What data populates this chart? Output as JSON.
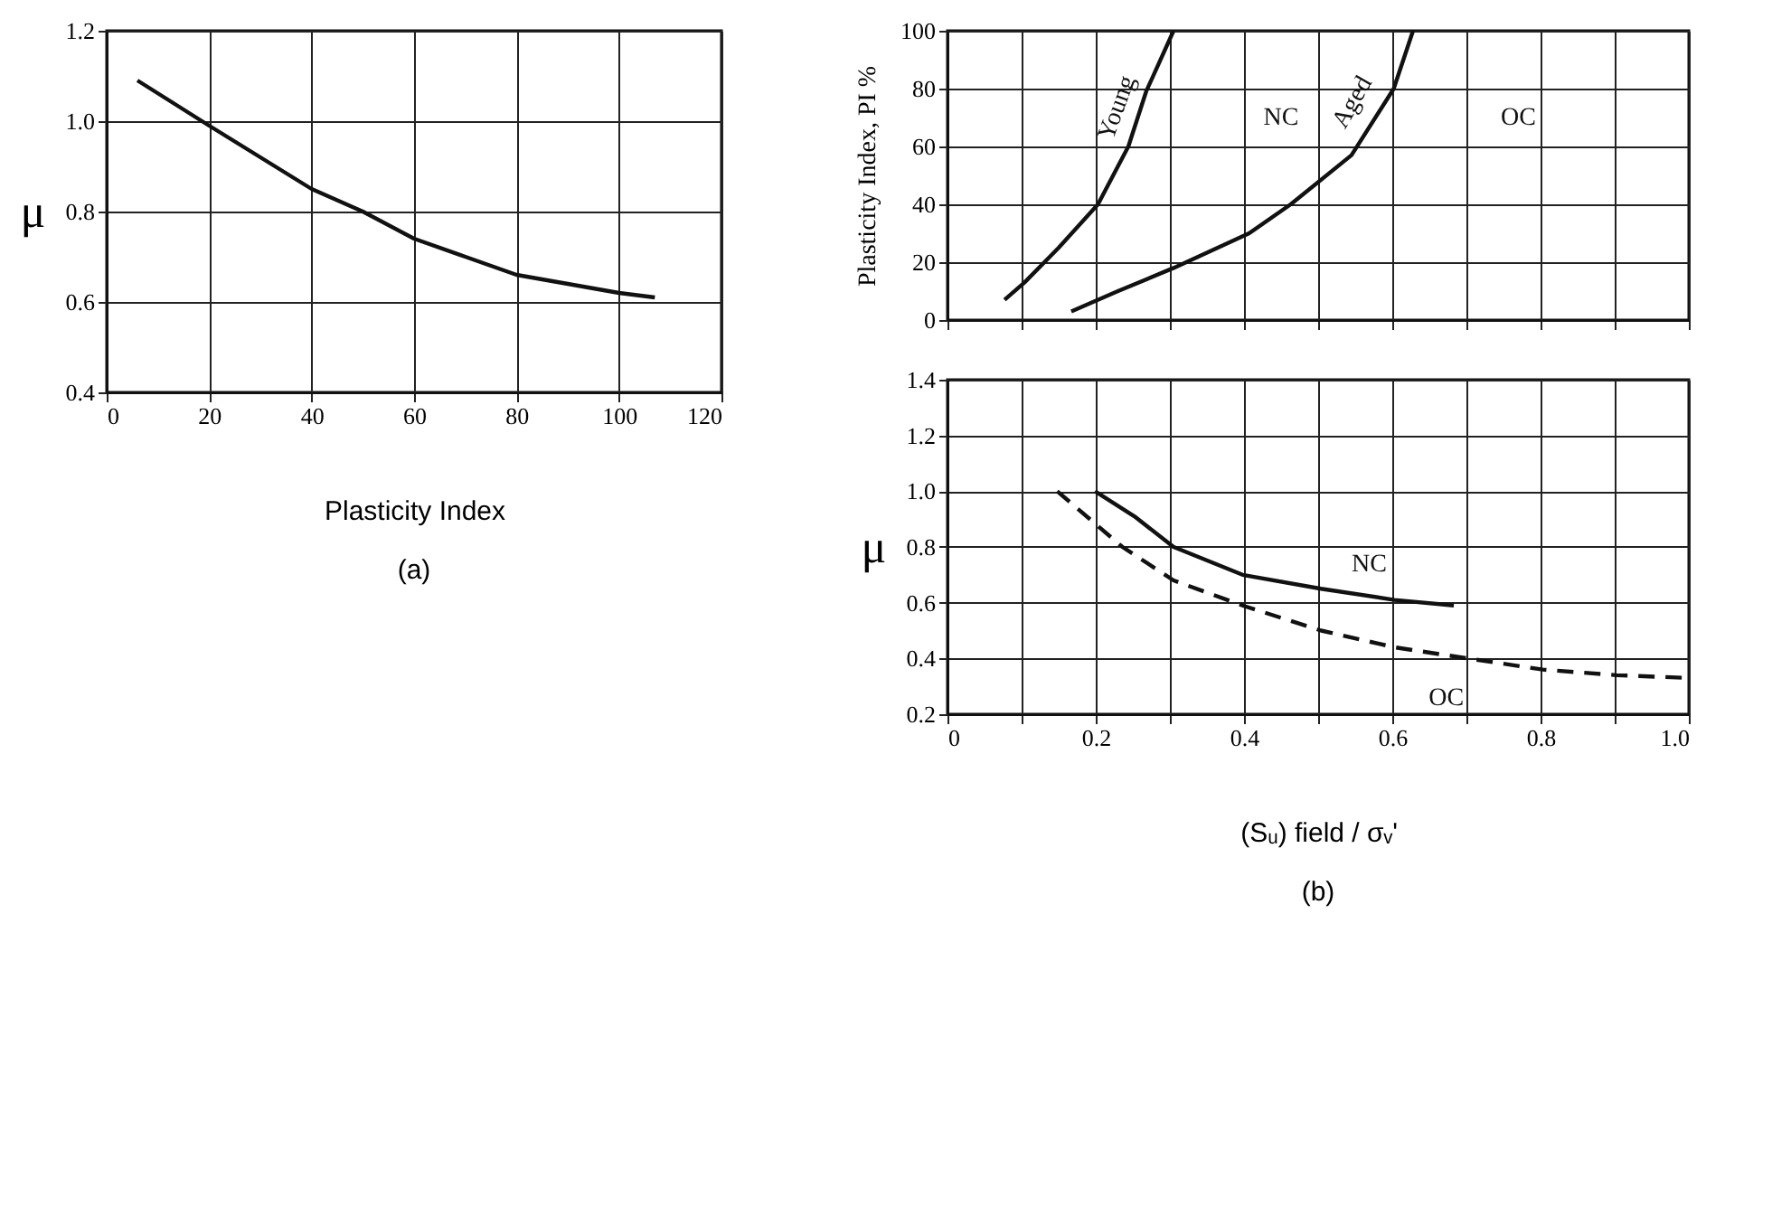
{
  "chart_data": [
    {
      "type": "line",
      "xlabel": "Plasticity Index",
      "ylabel": "μ",
      "annotations": [
        "(a)"
      ],
      "xlim": [
        0,
        120
      ],
      "ylim": [
        0.4,
        1.2
      ],
      "xticks": [
        0,
        20,
        40,
        60,
        80,
        100,
        120
      ],
      "yticks": [
        0.4,
        0.6,
        0.8,
        {
          "value": 1.0,
          "label": "1.0"
        },
        1.2
      ],
      "grid": true,
      "marker": "none",
      "series": [
        {
          "color": "#111111",
          "line_style": "solid",
          "x": [
            6,
            20,
            30,
            40,
            50,
            60,
            70,
            80,
            90,
            100,
            107
          ],
          "values": [
            1.09,
            0.99,
            0.92,
            0.85,
            0.8,
            0.74,
            0.7,
            0.66,
            0.64,
            0.62,
            0.61
          ]
        }
      ]
    },
    {
      "type": "line",
      "ylabel": "Plasticity Index,  PI %",
      "xlim": [
        0,
        1
      ],
      "ylim": [
        0,
        100
      ],
      "xticks": [
        0,
        0.1,
        0.2,
        0.3,
        0.4,
        0.5,
        0.6,
        0.7,
        0.8,
        0.9,
        1
      ],
      "yticks": [
        0,
        20,
        40,
        60,
        80,
        100
      ],
      "tick_labels": "y",
      "grid": true,
      "marker": "none",
      "annotations": [
        "NC",
        "OC"
      ],
      "series": [
        {
          "name": "Young",
          "color": "#111111",
          "line_style": "solid",
          "x": [
            0.077,
            0.104,
            0.15,
            0.203,
            0.244,
            0.268,
            0.305
          ],
          "values": [
            7,
            13,
            25,
            40,
            60,
            79,
            100
          ]
        },
        {
          "name": "Aged",
          "color": "#111111",
          "line_style": "solid",
          "x": [
            0.167,
            0.23,
            0.305,
            0.407,
            0.463,
            0.545,
            0.602,
            0.628
          ],
          "values": [
            3,
            10,
            18,
            30,
            40,
            57,
            80,
            100
          ]
        }
      ]
    },
    {
      "type": "line",
      "xlabel": "(Sᵤ) field / σᵥ'",
      "ylabel": "μ",
      "annotations": [
        "(b)"
      ],
      "xlim": [
        0,
        1
      ],
      "ylim": [
        0.2,
        1.4
      ],
      "xticks": [
        0,
        {
          "value": 0.1,
          "label": null
        },
        0.2,
        {
          "value": 0.3,
          "label": null
        },
        0.4,
        {
          "value": 0.5,
          "label": null
        },
        0.6,
        {
          "value": 0.7,
          "label": null
        },
        0.8,
        {
          "value": 0.9,
          "label": null
        },
        {
          "value": 1,
          "label": "1.0"
        }
      ],
      "yticks": [
        0.2,
        0.4,
        0.6,
        0.8,
        {
          "value": 1.0,
          "label": "1.0"
        },
        1.2,
        1.4
      ],
      "grid": true,
      "marker": "none",
      "series": [
        {
          "name": "NC",
          "color": "#111111",
          "line_style": "solid",
          "x": [
            0.199,
            0.252,
            0.305,
            0.398,
            0.504,
            0.603,
            0.683
          ],
          "values": [
            1.0,
            0.91,
            0.8,
            0.7,
            0.65,
            0.61,
            0.59
          ]
        },
        {
          "name": "OC",
          "color": "#111111",
          "line_style": "dashed",
          "x": [
            0.148,
            0.236,
            0.305,
            0.398,
            0.504,
            0.603,
            0.702,
            0.803,
            0.902,
            1.0
          ],
          "values": [
            1.0,
            0.8,
            0.68,
            0.59,
            0.5,
            0.44,
            0.4,
            0.36,
            0.34,
            0.33
          ]
        }
      ]
    }
  ]
}
